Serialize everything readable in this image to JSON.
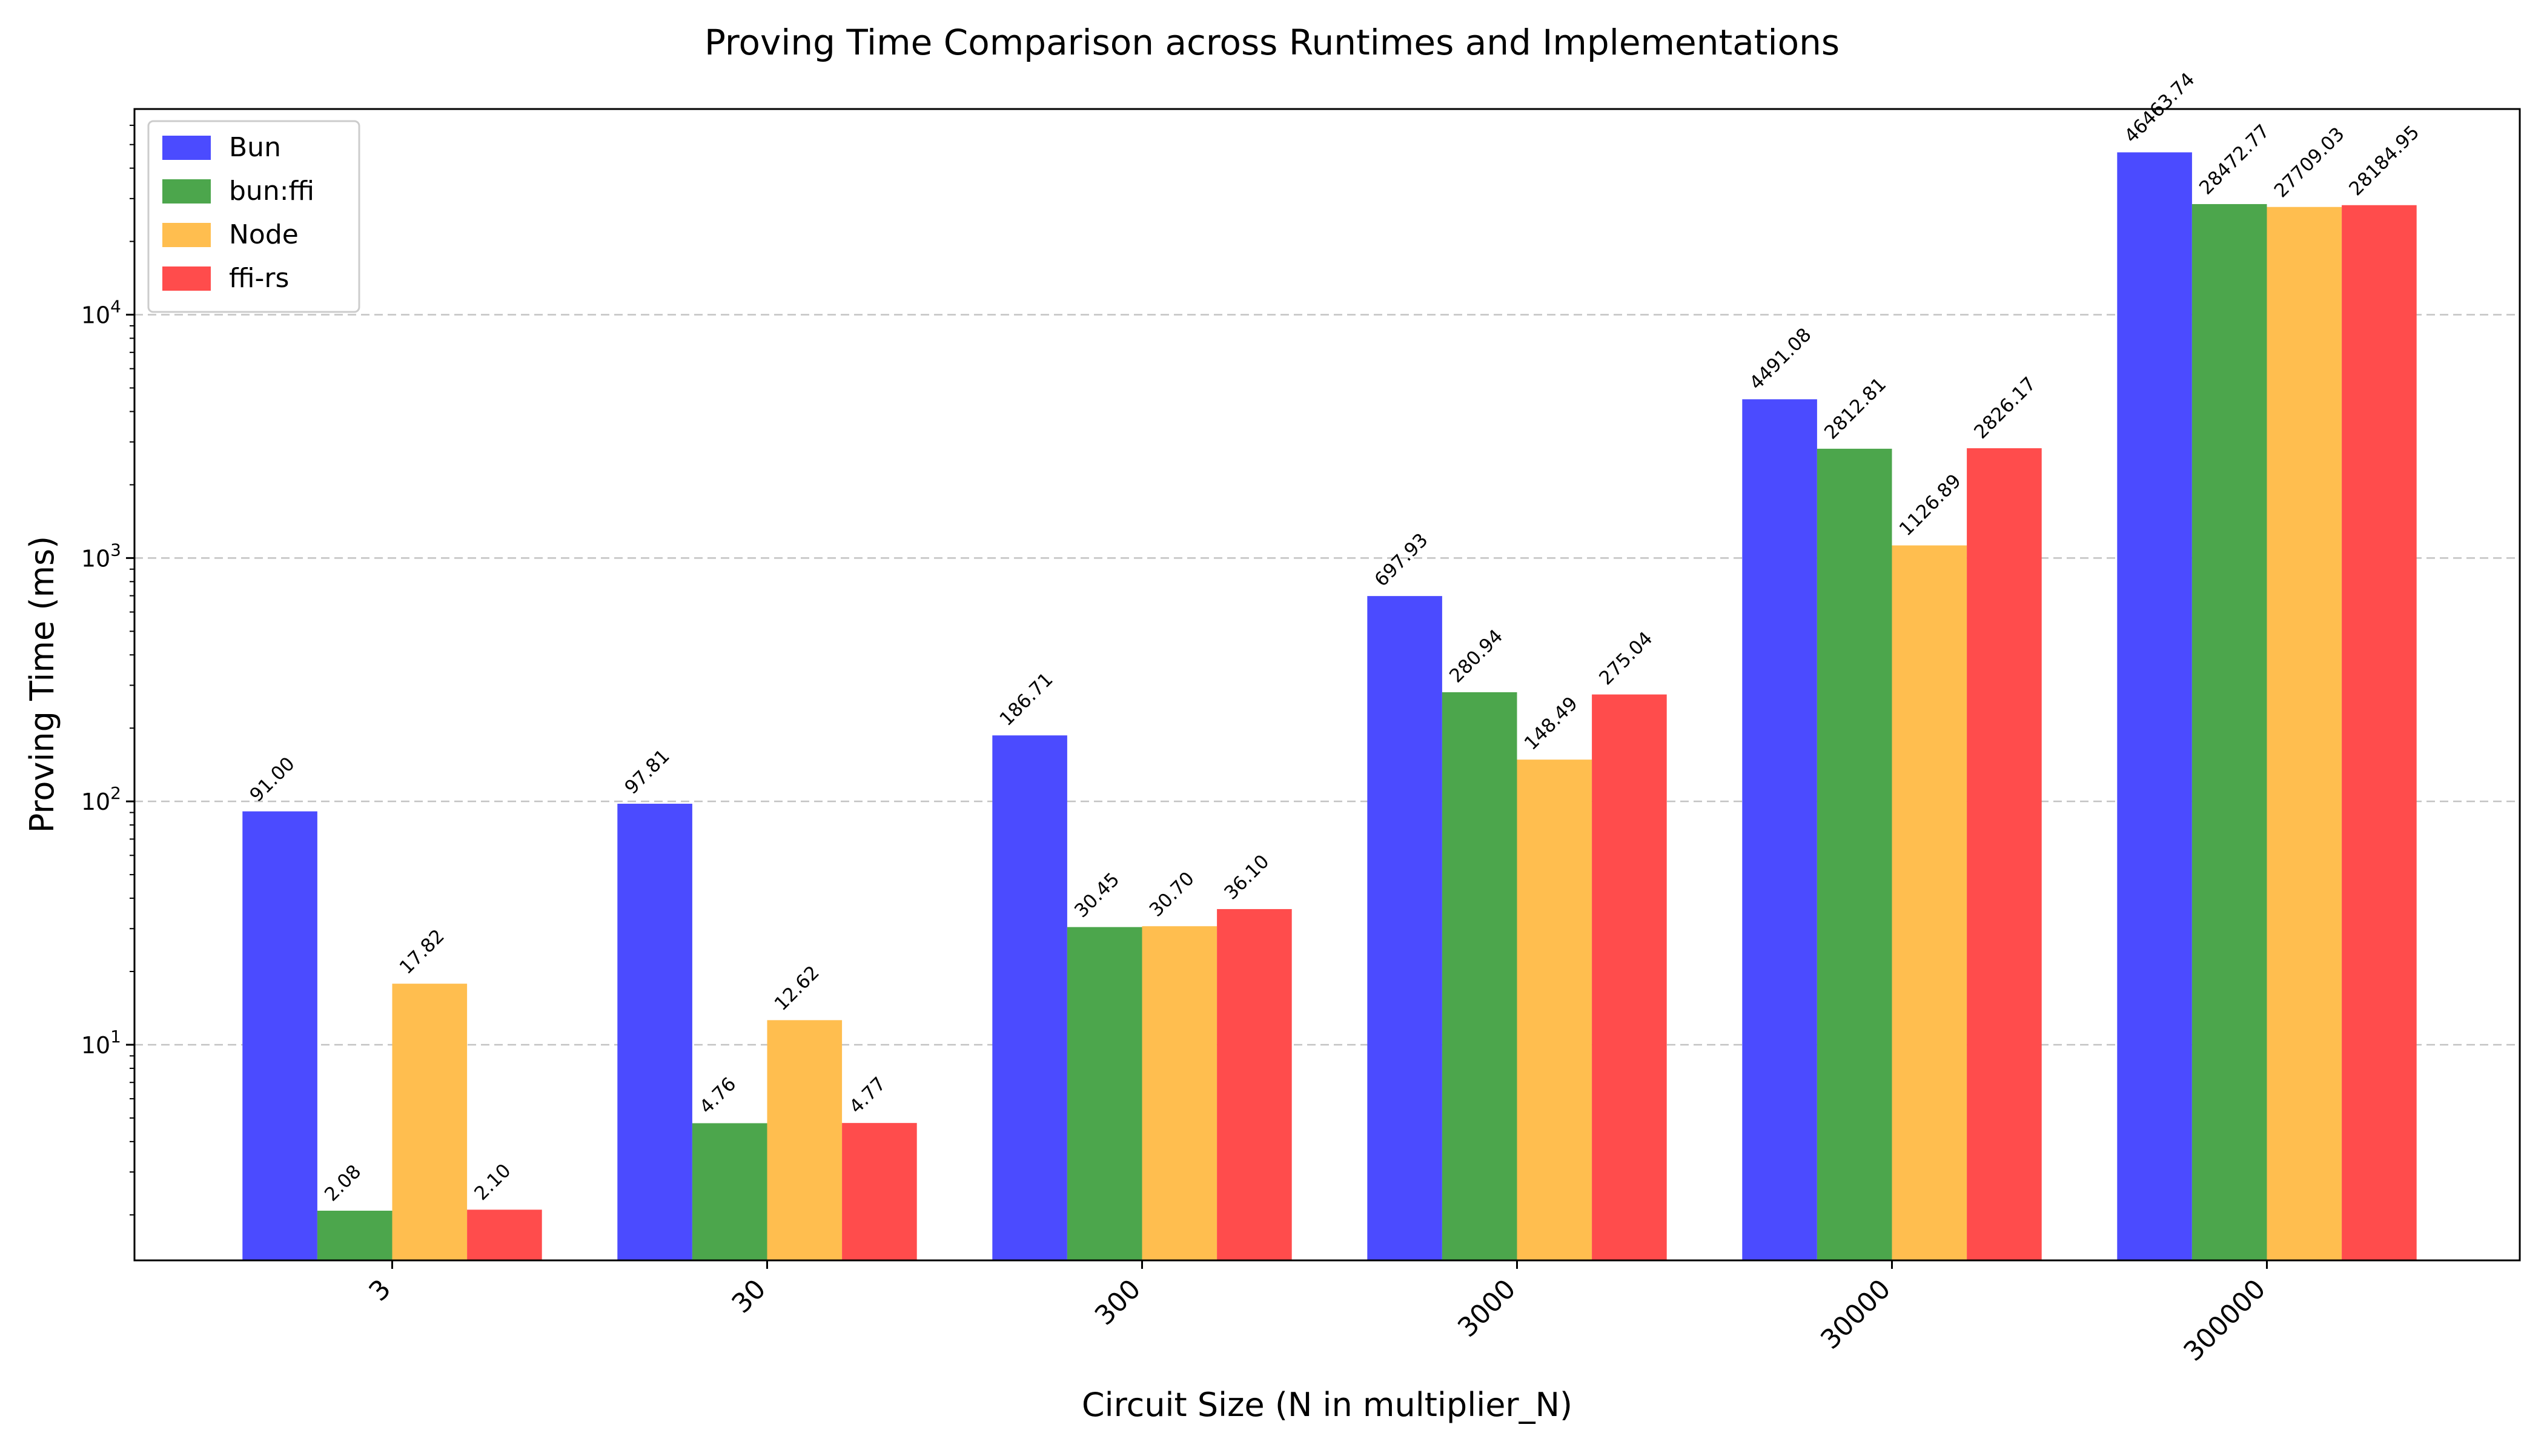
{
  "chart_data": {
    "type": "bar",
    "title": "Proving Time Comparison across Runtimes and Implementations",
    "xlabel": "Circuit Size (N in multiplier_N)",
    "ylabel": "Proving Time (ms)",
    "y_scale": "log",
    "ylim": [
      1.3,
      70000
    ],
    "grid": "y-major-dashed",
    "legend_position": "upper-left",
    "categories": [
      "3",
      "30",
      "300",
      "3000",
      "30000",
      "300000"
    ],
    "y_ticks": [
      {
        "value": 10,
        "base": "10",
        "exp": "1"
      },
      {
        "value": 100,
        "base": "10",
        "exp": "2"
      },
      {
        "value": 1000,
        "base": "10",
        "exp": "3"
      },
      {
        "value": 10000,
        "base": "10",
        "exp": "4"
      }
    ],
    "series": [
      {
        "name": "Bun",
        "color": "#4b4bff",
        "values": [
          91.0,
          97.81,
          186.71,
          697.93,
          4491.08,
          46463.74
        ],
        "labels": [
          "91.00",
          "97.81",
          "186.71",
          "697.93",
          "4491.08",
          "46463.74"
        ]
      },
      {
        "name": "bun:ffi",
        "color": "#4ca64c",
        "values": [
          2.08,
          4.76,
          30.45,
          280.94,
          2812.81,
          28472.77
        ],
        "labels": [
          "2.08",
          "4.76",
          "30.45",
          "280.94",
          "2812.81",
          "28472.77"
        ]
      },
      {
        "name": "Node",
        "color": "#ffbe4f",
        "values": [
          17.82,
          12.62,
          30.7,
          148.49,
          1126.89,
          27709.03
        ],
        "labels": [
          "17.82",
          "12.62",
          "30.70",
          "148.49",
          "1126.89",
          "27709.03"
        ]
      },
      {
        "name": "ffi-rs",
        "color": "#ff4c4c",
        "values": [
          2.1,
          4.77,
          36.1,
          275.04,
          2826.17,
          28184.95
        ],
        "labels": [
          "2.10",
          "4.77",
          "36.10",
          "275.04",
          "2826.17",
          "28184.95"
        ]
      }
    ]
  }
}
